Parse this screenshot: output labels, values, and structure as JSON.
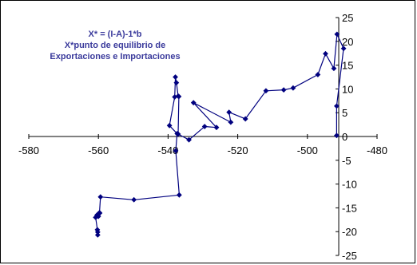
{
  "chart_data": {
    "type": "scatter",
    "title_lines": [
      "X* = (I-A)-1*b",
      "X*punto de equilibrio de",
      "Exportaciones e Importaciones"
    ],
    "title_color": "#3b3b9c",
    "series_color": "#00007f",
    "xlim": [
      -580,
      -480
    ],
    "ylim": [
      -25,
      25
    ],
    "x_ticks": [
      -580,
      -560,
      -540,
      -520,
      -500,
      -480
    ],
    "y_ticks": [
      -25,
      -20,
      -15,
      -10,
      -5,
      0,
      5,
      10,
      15,
      20,
      25
    ],
    "grid": false,
    "legend": "none",
    "series": [
      {
        "points": [
          [
            -560.2,
            -20.7
          ],
          [
            -560.2,
            -20.1
          ],
          [
            -560.3,
            -19.6
          ],
          [
            -560.8,
            -17.0
          ],
          [
            -560.4,
            -16.5
          ],
          [
            -560.0,
            -16.8
          ],
          [
            -559.6,
            -16.1
          ],
          [
            -559.7,
            -16.0
          ],
          [
            -559.4,
            -12.7
          ],
          [
            -549.8,
            -13.3
          ],
          [
            -536.8,
            -12.3
          ],
          [
            -537.8,
            -3.0
          ],
          [
            -537.4,
            0.6
          ],
          [
            -539.6,
            2.3
          ],
          [
            -538.1,
            8.3
          ],
          [
            -537.9,
            12.5
          ],
          [
            -537.6,
            11.3
          ],
          [
            -537.1,
            8.5
          ],
          [
            -536.9,
            8.4
          ],
          [
            -537.1,
            0.5
          ],
          [
            -534.0,
            -0.7
          ],
          [
            -529.5,
            2.1
          ],
          [
            -526.1,
            1.9
          ],
          [
            -532.7,
            7.1
          ],
          [
            -522.0,
            3.0
          ],
          [
            -522.5,
            5.1
          ],
          [
            -517.8,
            3.7
          ],
          [
            -511.9,
            9.6
          ],
          [
            -506.8,
            9.8
          ],
          [
            -504.1,
            10.2
          ],
          [
            -497.0,
            13.0
          ],
          [
            -494.8,
            17.4
          ],
          [
            -492.4,
            14.3
          ],
          [
            -491.5,
            21.5
          ],
          [
            -489.6,
            18.5
          ],
          [
            -491.6,
            6.4
          ],
          [
            -491.6,
            0.2
          ]
        ]
      }
    ]
  }
}
